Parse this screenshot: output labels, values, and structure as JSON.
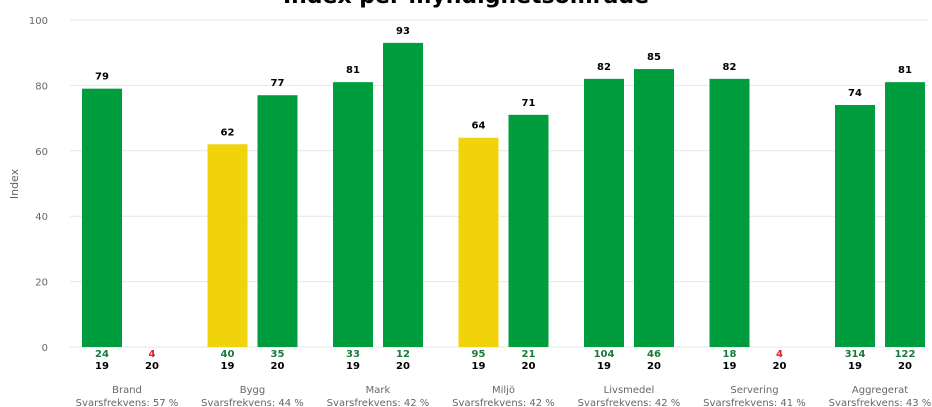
{
  "chart_data": {
    "type": "bar",
    "title": "Index per myndighetsområde",
    "ylabel": "Index",
    "ylim": [
      0,
      100
    ],
    "yticks": [
      0,
      20,
      40,
      60,
      80,
      100
    ],
    "grid": true,
    "colors": {
      "green": "#009d3e",
      "yellow": "#f0d30a",
      "count_green": "#1a7a3a",
      "count_red": "#e31f1f",
      "year": "#000000"
    },
    "groups": [
      {
        "category": "Brand",
        "response_rate": "Svarsfrekvens: 57 %",
        "bars": [
          {
            "year": "19",
            "value": 79,
            "n": 24,
            "color": "green",
            "n_color": "count_green"
          },
          {
            "year": "20",
            "value": null,
            "n": 4,
            "color": "green",
            "n_color": "count_red"
          }
        ]
      },
      {
        "category": "Bygg",
        "response_rate": "Svarsfrekvens: 44 %",
        "bars": [
          {
            "year": "19",
            "value": 62,
            "n": 40,
            "color": "yellow",
            "n_color": "count_green"
          },
          {
            "year": "20",
            "value": 77,
            "n": 35,
            "color": "green",
            "n_color": "count_green"
          }
        ]
      },
      {
        "category": "Mark",
        "response_rate": "Svarsfrekvens: 42 %",
        "bars": [
          {
            "year": "19",
            "value": 81,
            "n": 33,
            "color": "green",
            "n_color": "count_green"
          },
          {
            "year": "20",
            "value": 93,
            "n": 12,
            "color": "green",
            "n_color": "count_green"
          }
        ]
      },
      {
        "category": "Miljö",
        "response_rate": "Svarsfrekvens: 42 %",
        "bars": [
          {
            "year": "19",
            "value": 64,
            "n": 95,
            "color": "yellow",
            "n_color": "count_green"
          },
          {
            "year": "20",
            "value": 71,
            "n": 21,
            "color": "green",
            "n_color": "count_green"
          }
        ]
      },
      {
        "category": "Livsmedel",
        "response_rate": "Svarsfrekvens: 42 %",
        "bars": [
          {
            "year": "19",
            "value": 82,
            "n": 104,
            "color": "green",
            "n_color": "count_green"
          },
          {
            "year": "20",
            "value": 85,
            "n": 46,
            "color": "green",
            "n_color": "count_green"
          }
        ]
      },
      {
        "category": "Servering",
        "response_rate": "Svarsfrekvens: 41 %",
        "bars": [
          {
            "year": "19",
            "value": 82,
            "n": 18,
            "color": "green",
            "n_color": "count_green"
          },
          {
            "year": "20",
            "value": null,
            "n": 4,
            "color": "green",
            "n_color": "count_red"
          }
        ]
      },
      {
        "category": "Aggregerat",
        "response_rate": "Svarsfrekvens: 43 %",
        "bars": [
          {
            "year": "19",
            "value": 74,
            "n": 314,
            "color": "green",
            "n_color": "count_green"
          },
          {
            "year": "20",
            "value": 81,
            "n": 122,
            "color": "green",
            "n_color": "count_green"
          }
        ]
      }
    ]
  }
}
